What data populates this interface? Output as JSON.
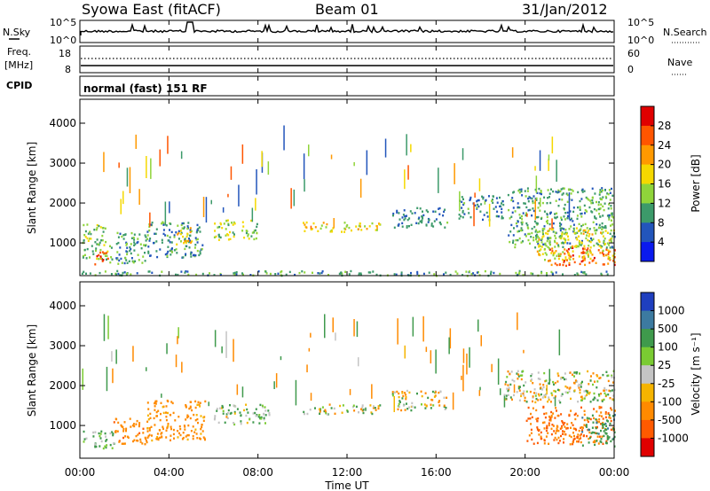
{
  "header": {
    "station": "Syowa East (fitACF)",
    "beam": "Beam 01",
    "date": "31/Jan/2012"
  },
  "strip_nsky": {
    "label": "N.Sky",
    "ticks_left": [
      "10^5",
      "10^0"
    ],
    "label_right": "N.Search",
    "ticks_right": [
      "10^5",
      "10^0"
    ]
  },
  "strip_freq": {
    "label_line1": "Freq.",
    "label_line2": "[MHz]",
    "ticks_left": [
      "18",
      "8"
    ],
    "label_right": "Nave",
    "ticks_right": [
      "60",
      "0"
    ]
  },
  "cpid": {
    "label": "CPID",
    "mode_text": "normal (fast) 151 RF"
  },
  "x_axis": {
    "title": "Time UT",
    "ticks": [
      "00:00",
      "04:00",
      "08:00",
      "12:00",
      "16:00",
      "20:00",
      "00:00"
    ]
  },
  "power_colorbar": {
    "label": "Power [dB]",
    "ticks": [
      "28",
      "24",
      "20",
      "16",
      "12",
      "8",
      "4"
    ],
    "colors": [
      "#e00000",
      "#ff5500",
      "#ff9900",
      "#f5d800",
      "#8fd43a",
      "#3c9a6a",
      "#2255bb",
      "#0a1aee"
    ]
  },
  "velocity_colorbar": {
    "label": "Velocity [m s⁻¹]",
    "ticks": [
      "1000",
      "500",
      "100",
      "25",
      "-25",
      "-100",
      "-500",
      "-1000"
    ],
    "colors": [
      "#1f3fbf",
      "#3c7aa0",
      "#3f9a4c",
      "#7acb32",
      "#c4c4c4",
      "#f5b400",
      "#ff8a00",
      "#ff5a00",
      "#e00000"
    ]
  },
  "chart_data": [
    {
      "type": "heatmap",
      "title": "Power",
      "xlabel": "Time UT",
      "ylabel": "Slant Range [km]",
      "xlim": [
        0,
        24
      ],
      "ylim": [
        180,
        4600
      ],
      "yticks": [
        1000,
        2000,
        3000,
        4000
      ],
      "colorbar": {
        "label": "Power [dB]",
        "range": [
          0,
          30
        ]
      },
      "regions": [
        {
          "t": [
            0.1,
            1.3
          ],
          "r": [
            600,
            1500
          ],
          "value": 12
        },
        {
          "t": [
            0.6,
            1.3
          ],
          "r": [
            480,
            800
          ],
          "value": 26
        },
        {
          "t": [
            1.3,
            3.0
          ],
          "r": [
            500,
            1300
          ],
          "value": 10
        },
        {
          "t": [
            3.0,
            5.5
          ],
          "r": [
            650,
            1550
          ],
          "value": 9
        },
        {
          "t": [
            4.3,
            5.0
          ],
          "r": [
            900,
            1400
          ],
          "value": 18
        },
        {
          "t": [
            6.0,
            8.0
          ],
          "r": [
            1100,
            1600
          ],
          "value": 14
        },
        {
          "t": [
            10.0,
            13.5
          ],
          "r": [
            1300,
            1550
          ],
          "value": 16
        },
        {
          "t": [
            14.0,
            16.5
          ],
          "r": [
            1400,
            1900
          ],
          "value": 8
        },
        {
          "t": [
            17.0,
            19.0
          ],
          "r": [
            1600,
            2200
          ],
          "value": 8
        },
        {
          "t": [
            19.2,
            24.0
          ],
          "r": [
            900,
            2400
          ],
          "value": 10
        },
        {
          "t": [
            21.0,
            24.0
          ],
          "r": [
            450,
            900
          ],
          "value": 24
        },
        {
          "t": [
            20.5,
            24.0
          ],
          "r": [
            600,
            1400
          ],
          "value": 16
        },
        {
          "t": [
            0.0,
            24.0
          ],
          "r": [
            200,
            320
          ],
          "value": 10
        }
      ]
    },
    {
      "type": "heatmap",
      "title": "Velocity",
      "xlabel": "Time UT",
      "ylabel": "Slant Range [km]",
      "xlim": [
        0,
        24
      ],
      "ylim": [
        180,
        4600
      ],
      "yticks": [
        1000,
        2000,
        3000,
        4000
      ],
      "colorbar": {
        "label": "Velocity [m s⁻¹]",
        "range": [
          -1000,
          1000
        ]
      },
      "regions": [
        {
          "t": [
            0.1,
            1.5
          ],
          "r": [
            450,
            900
          ],
          "value": 100
        },
        {
          "t": [
            1.5,
            3.0
          ],
          "r": [
            550,
            1200
          ],
          "value": -200
        },
        {
          "t": [
            3.0,
            5.6
          ],
          "r": [
            650,
            1650
          ],
          "value": -150
        },
        {
          "t": [
            6.0,
            8.5
          ],
          "r": [
            1050,
            1550
          ],
          "value": 60
        },
        {
          "t": [
            10.0,
            13.5
          ],
          "r": [
            1300,
            1550
          ],
          "value": 0
        },
        {
          "t": [
            14.0,
            16.5
          ],
          "r": [
            1400,
            1900
          ],
          "value": 0
        },
        {
          "t": [
            19.0,
            24.0
          ],
          "r": [
            1600,
            2400
          ],
          "value": 0
        },
        {
          "t": [
            20.0,
            24.0
          ],
          "r": [
            550,
            1500
          ],
          "value": -300
        },
        {
          "t": [
            22.5,
            24.0
          ],
          "r": [
            500,
            1300
          ],
          "value": 200
        }
      ]
    }
  ]
}
